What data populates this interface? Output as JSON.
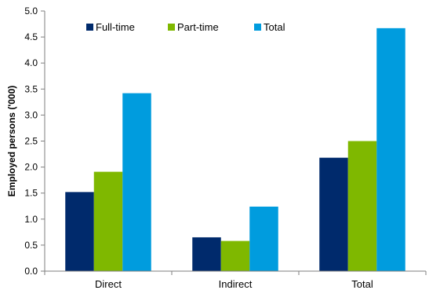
{
  "chart_data": {
    "type": "bar",
    "ylabel": "Employed persons ('000)",
    "xlabel": "",
    "ylim": [
      0,
      5.0
    ],
    "yticks": [
      "0.0",
      "0.5",
      "1.0",
      "1.5",
      "2.0",
      "2.5",
      "3.0",
      "3.5",
      "4.0",
      "4.5",
      "5.0"
    ],
    "grid": false,
    "legend_position": "top",
    "categories": [
      "Direct",
      "Indirect",
      "Total"
    ],
    "series": [
      {
        "name": "Full-time",
        "color": "#002a6c",
        "values": [
          1.52,
          0.65,
          2.18
        ]
      },
      {
        "name": "Part-time",
        "color": "#7fb800",
        "values": [
          1.91,
          0.58,
          2.5
        ]
      },
      {
        "name": "Total",
        "color": "#009cde",
        "values": [
          3.42,
          1.24,
          4.67
        ]
      }
    ]
  }
}
